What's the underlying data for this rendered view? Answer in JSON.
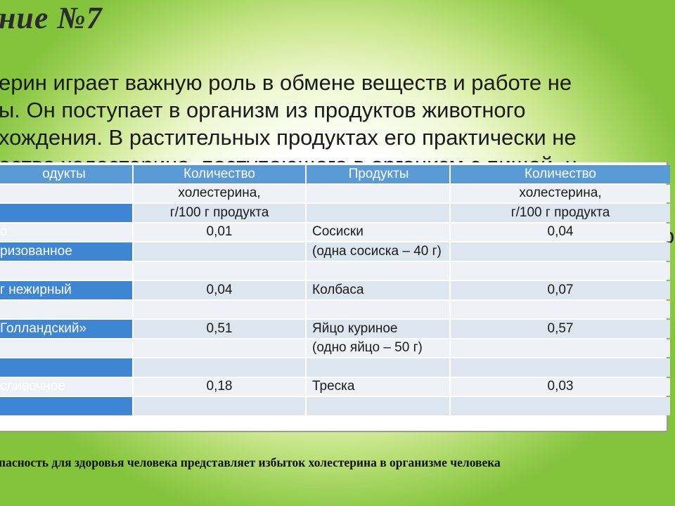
{
  "title": "ние №7",
  "intro": {
    "line1": "ерин играет важную роль в обмене веществ и работе не",
    "line2": "ы. Он поступает в организм из продуктов животного",
    "line3": "хождения. В растительных продуктах его практически не",
    "line4": "ество холестерина, поступающего в организм с пищей, н",
    "right_fragment": "о"
  },
  "table": {
    "header": [
      "одукты",
      "Количество",
      "Продукты",
      "Количество"
    ],
    "rows": [
      [
        "",
        "холестерина,",
        "",
        "холестерина,"
      ],
      [
        "",
        "г/100 г продукта",
        "",
        "г/100 г продукта"
      ],
      [
        "о",
        "0,01",
        "Сосиски",
        "0,04"
      ],
      [
        "ризованное",
        "",
        "(одна сосиска – 40 г)",
        ""
      ],
      [
        "",
        "",
        "",
        ""
      ],
      [
        "г нежирный",
        "0,04",
        "Колбаса",
        "0,07"
      ],
      [
        "",
        "",
        "",
        ""
      ],
      [
        "Голландский»",
        "0,51",
        "Яйцо куриное",
        "0,57"
      ],
      [
        "",
        "",
        "(одно яйцо – 50 г)",
        ""
      ],
      [
        "",
        "",
        "",
        ""
      ],
      [
        " сливочное",
        "0,18",
        "Треска",
        "0,03"
      ],
      [
        "",
        "",
        "",
        ""
      ]
    ]
  },
  "footer": "пасность для здоровья человека представляет избыток холестерина в организме человека"
}
